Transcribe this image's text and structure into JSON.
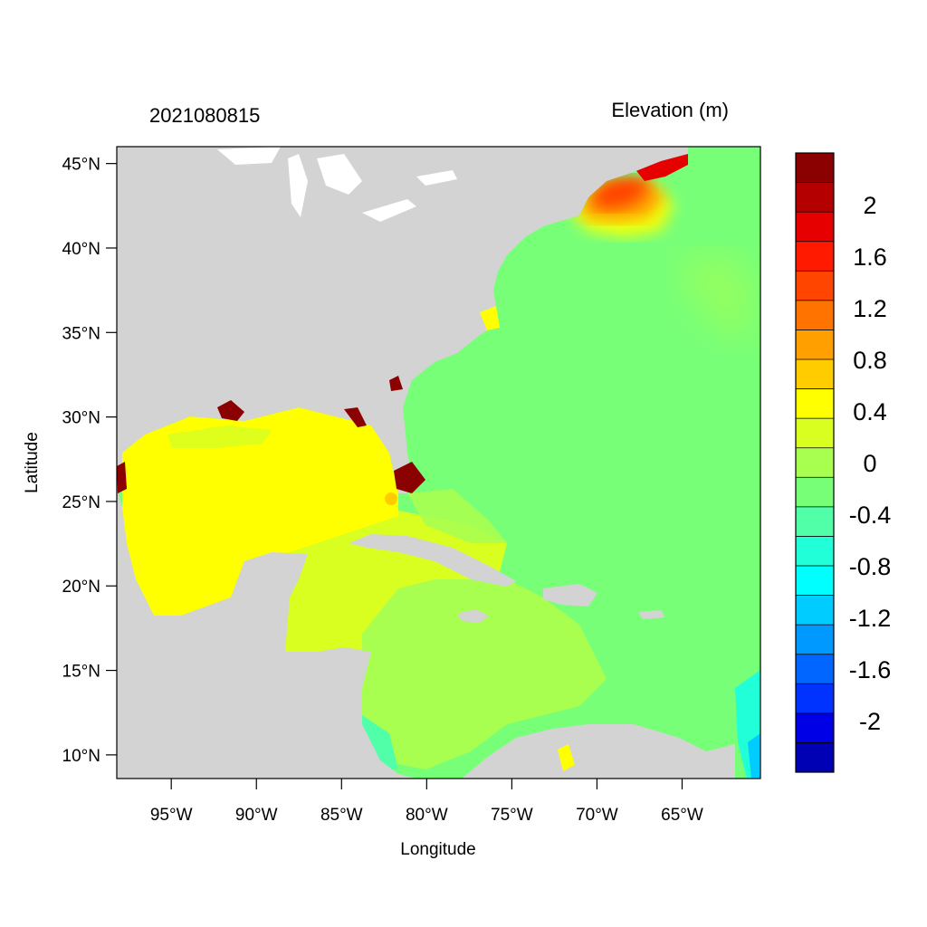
{
  "timestamp": "2021080815",
  "variable_title": "Elevation (m)",
  "x_axis_title": "Longitude",
  "y_axis_title": "Latitude",
  "lon_range": [
    -98.2,
    -60.4
  ],
  "lat_range": [
    8.6,
    46.0
  ],
  "lon_ticks": [
    {
      "value": -95,
      "label": "95°W"
    },
    {
      "value": -90,
      "label": "90°W"
    },
    {
      "value": -85,
      "label": "85°W"
    },
    {
      "value": -80,
      "label": "80°W"
    },
    {
      "value": -75,
      "label": "75°W"
    },
    {
      "value": -70,
      "label": "70°W"
    },
    {
      "value": -65,
      "label": "65°W"
    }
  ],
  "lat_ticks": [
    {
      "value": 45,
      "label": "45°N"
    },
    {
      "value": 40,
      "label": "40°N"
    },
    {
      "value": 35,
      "label": "35°N"
    },
    {
      "value": 30,
      "label": "30°N"
    },
    {
      "value": 25,
      "label": "25°N"
    },
    {
      "value": 20,
      "label": "20°N"
    },
    {
      "value": 15,
      "label": "15°N"
    },
    {
      "value": 10,
      "label": "10°N"
    }
  ],
  "colorbar": {
    "colors_top_to_bottom": [
      "#8b0000",
      "#b40000",
      "#e60000",
      "#ff1a00",
      "#ff4500",
      "#ff7300",
      "#ffa000",
      "#ffcc00",
      "#ffff00",
      "#d8ff20",
      "#a8ff50",
      "#78ff78",
      "#50ffa8",
      "#20ffd8",
      "#00ffff",
      "#00ccff",
      "#0099ff",
      "#0066ff",
      "#0033ff",
      "#0000e6",
      "#0000b4"
    ],
    "labels": [
      "2",
      "1.6",
      "1.2",
      "0.8",
      "0.4",
      "0",
      "-0.4",
      "-0.8",
      "-1.2",
      "-1.6",
      "-2"
    ],
    "label_values": [
      2,
      1.6,
      1.2,
      0.8,
      0.4,
      0,
      -0.4,
      -0.8,
      -1.2,
      -1.6,
      -2
    ]
  },
  "colors": {
    "land": "#d3d3d3",
    "lakes": "#ffffff",
    "atlantic": "#78ff78",
    "gulf": "#ffff00",
    "caribbean": "#d8ff20",
    "south_caribbean": "#a8ff50",
    "gulf_of_maine": "#ff7300",
    "surge_high": "#8b0000"
  }
}
